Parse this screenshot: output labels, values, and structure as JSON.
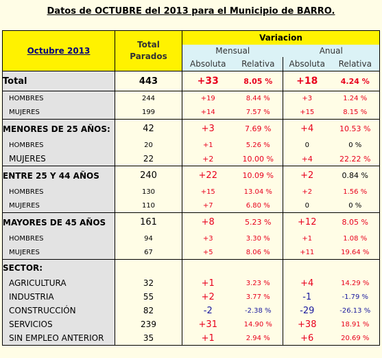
{
  "title": "Datos de OCTUBRE del 2013 para el Municipio de BARRO.",
  "header": {
    "period_label": "Octubre 2013",
    "total_label_1": "Total",
    "total_label_2": "Parados",
    "variacion": "Variacion",
    "mensual": "Mensual",
    "anual": "Anual",
    "absoluta": "Absoluta",
    "relativa": "Relativa"
  },
  "rows": [
    {
      "label": "Total",
      "total": "443",
      "m_abs": "+33",
      "m_rel": "8.05 %",
      "a_abs": "+18",
      "a_rel": "4.24 %"
    },
    {
      "label": "HOMBRES",
      "total": "244",
      "m_abs": "+19",
      "m_rel": "8.44 %",
      "a_abs": "+3",
      "a_rel": "1.24 %"
    },
    {
      "label": "MUJERES",
      "total": "199",
      "m_abs": "+14",
      "m_rel": "7.57 %",
      "a_abs": "+15",
      "a_rel": "8.15 %"
    },
    {
      "label": "MENORES DE 25 AÑOS:",
      "total": "42",
      "m_abs": "+3",
      "m_rel": "7.69 %",
      "a_abs": "+4",
      "a_rel": "10.53 %"
    },
    {
      "label": "HOMBRES",
      "total": "20",
      "m_abs": "+1",
      "m_rel": "5.26 %",
      "a_abs": "0",
      "a_rel": "0 %"
    },
    {
      "label": "MUJERES",
      "total": "22",
      "m_abs": "+2",
      "m_rel": "10.00 %",
      "a_abs": "+4",
      "a_rel": "22.22 %"
    },
    {
      "label": "ENTRE 25 Y 44 AÑOS",
      "total": "240",
      "m_abs": "+22",
      "m_rel": "10.09 %",
      "a_abs": "+2",
      "a_rel": "0.84 %"
    },
    {
      "label": "HOMBRES",
      "total": "130",
      "m_abs": "+15",
      "m_rel": "13.04 %",
      "a_abs": "+2",
      "a_rel": "1.56 %"
    },
    {
      "label": "MUJERES",
      "total": "110",
      "m_abs": "+7",
      "m_rel": "6.80 %",
      "a_abs": "0",
      "a_rel": "0 %"
    },
    {
      "label": "MAYORES DE 45 AÑOS",
      "total": "161",
      "m_abs": "+8",
      "m_rel": "5.23 %",
      "a_abs": "+12",
      "a_rel": "8.05 %"
    },
    {
      "label": "HOMBRES",
      "total": "94",
      "m_abs": "+3",
      "m_rel": "3.30 %",
      "a_abs": "+1",
      "a_rel": "1.08 %"
    },
    {
      "label": "MUJERES",
      "total": "67",
      "m_abs": "+5",
      "m_rel": "8.06 %",
      "a_abs": "+11",
      "a_rel": "19.64 %"
    },
    {
      "label": "SECTOR:"
    },
    {
      "label": "AGRICULTURA",
      "total": "32",
      "m_abs": "+1",
      "m_rel": "3.23 %",
      "a_abs": "+4",
      "a_rel": "14.29 %"
    },
    {
      "label": "INDUSTRIA",
      "total": "55",
      "m_abs": "+2",
      "m_rel": "3.77 %",
      "a_abs": "-1",
      "a_rel": "-1.79 %"
    },
    {
      "label": "CONSTRUCCIÓN",
      "total": "82",
      "m_abs": "-2",
      "m_rel": "-2.38 %",
      "a_abs": "-29",
      "a_rel": "-26.13 %"
    },
    {
      "label": "SERVICIOS",
      "total": "239",
      "m_abs": "+31",
      "m_rel": "14.90 %",
      "a_abs": "+38",
      "a_rel": "18.91 %"
    },
    {
      "label": "SIN EMPLEO ANTERIOR",
      "total": "35",
      "m_abs": "+1",
      "m_rel": "2.94 %",
      "a_abs": "+6",
      "a_rel": "20.69 %"
    }
  ],
  "colors": {
    "positive": "#e8001c",
    "negative": "#1a1a9e",
    "header_yellow": "#fff200",
    "header_cyan": "#dbf2f6"
  }
}
